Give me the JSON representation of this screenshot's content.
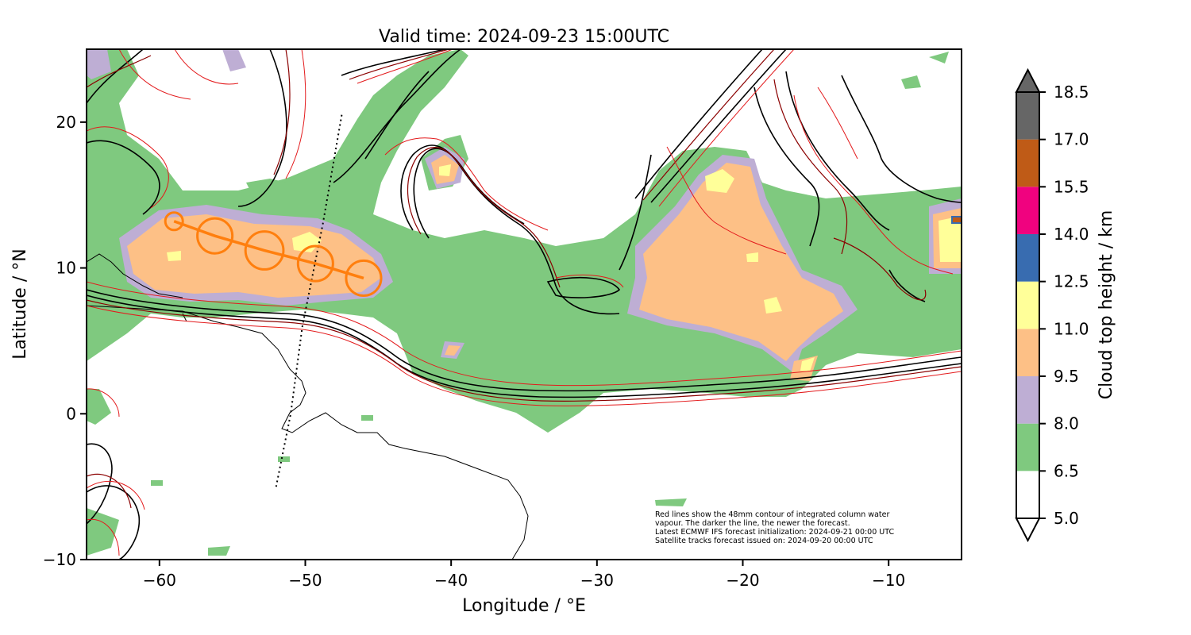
{
  "title": "Valid time: 2024-09-23 15:00UTC",
  "axes": {
    "xlabel": "Longitude / °E",
    "ylabel": "Latitude / °N",
    "xlim": [
      -65,
      -5
    ],
    "ylim": [
      -10,
      25
    ],
    "xticks": [
      -60,
      -50,
      -40,
      -30,
      -20,
      -10
    ],
    "yticks": [
      -10,
      0,
      10,
      20
    ],
    "xtick_labels": [
      "−60",
      "−50",
      "−40",
      "−30",
      "−20",
      "−10"
    ],
    "ytick_labels": [
      "−10",
      "0",
      "10",
      "20"
    ]
  },
  "colorbar": {
    "label": "Cloud top height / km",
    "levels": [
      5.0,
      6.5,
      8.0,
      9.5,
      11.0,
      12.5,
      14.0,
      15.5,
      17.0,
      18.5
    ],
    "level_labels": [
      "5.0",
      "6.5",
      "8.0",
      "9.5",
      "11.0",
      "12.5",
      "14.0",
      "15.5",
      "17.0",
      "18.5"
    ],
    "colors": [
      "#ffffff",
      "#7fc97f",
      "#beaed4",
      "#fdc086",
      "#ffff99",
      "#386cb0",
      "#f0027f",
      "#bf5b17",
      "#666666"
    ],
    "extend": "both"
  },
  "note": {
    "lines": [
      "Red lines show the 48mm contour of integrated column water",
      "vapour. The darker the line, the newer the forecast.",
      "Latest ECMWF IFS forecast initialization: 2024-09-21 00:00 UTC",
      "Satellite tracks forecast issued on: 2024-09-20 00:00 UTC"
    ]
  },
  "satellite_track": {
    "color": "#ff7f0e",
    "points": [
      [
        -59.0,
        13.2
      ],
      [
        -56.2,
        12.2
      ],
      [
        -52.8,
        11.2
      ],
      [
        -49.3,
        10.3
      ],
      [
        -46.0,
        9.3
      ]
    ],
    "circle_radius_deg": [
      0.6,
      1.2,
      1.3,
      1.2,
      1.2
    ]
  },
  "dotted_track": {
    "points": [
      [
        -47.5,
        20.5
      ],
      [
        -48.8,
        13.0
      ],
      [
        -50.2,
        6.0
      ],
      [
        -51.0,
        0.0
      ],
      [
        -52.0,
        -5.0
      ]
    ]
  },
  "chart_data": {
    "type": "map",
    "title": "Valid time: 2024-09-23 15:00UTC",
    "xlabel": "Longitude / °E",
    "ylabel": "Latitude / °N",
    "xlim": [
      -65,
      -5
    ],
    "ylim": [
      -10,
      25
    ],
    "colorbar_label": "Cloud top height / km",
    "colorbar_levels": [
      5.0,
      6.5,
      8.0,
      9.5,
      11.0,
      12.5,
      14.0,
      15.5,
      17.0,
      18.5
    ]
  }
}
